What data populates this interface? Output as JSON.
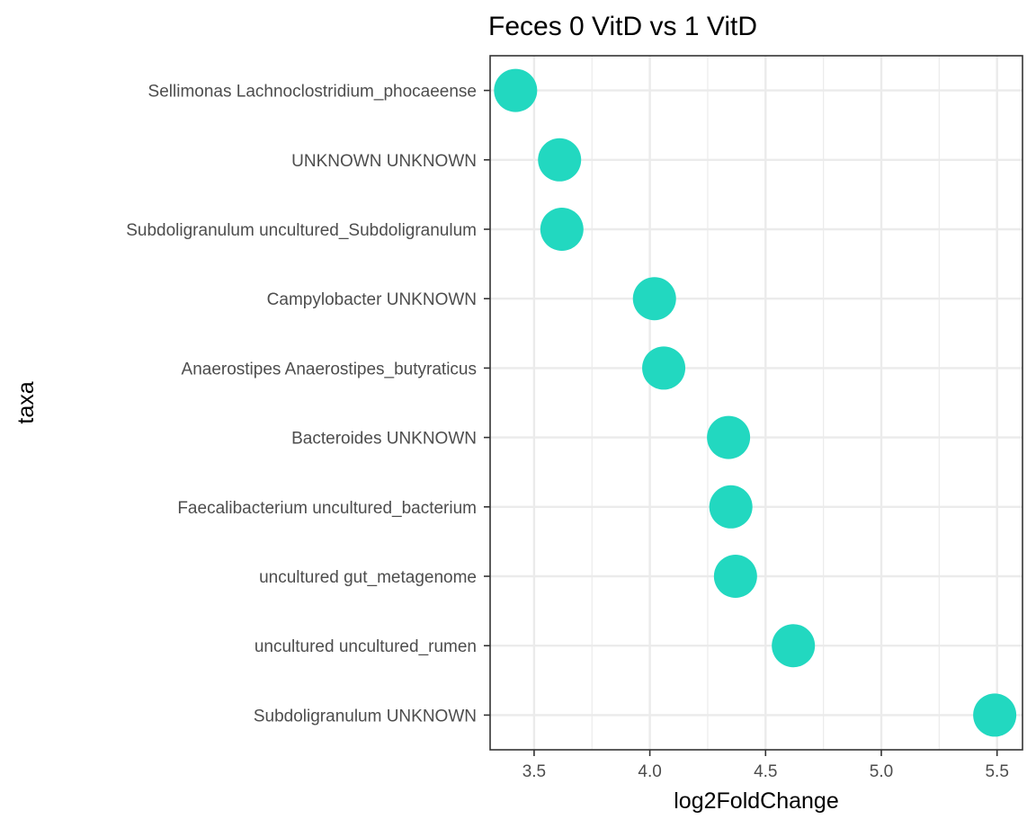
{
  "chart_data": {
    "type": "scatter",
    "title": "Feces 0 VitD vs 1 VitD",
    "xlabel": "log2FoldChange",
    "ylabel": "taxa",
    "xlim": [
      3.31,
      5.61
    ],
    "x_ticks": [
      3.5,
      4.0,
      4.5,
      5.0,
      5.5
    ],
    "x_tick_labels": [
      "3.5",
      "4.0",
      "4.5",
      "5.0",
      "5.5"
    ],
    "grid": true,
    "point_color": "#22d8c0",
    "categories": [
      "Sellimonas Lachnoclostridium_phocaeense",
      "UNKNOWN UNKNOWN",
      "Subdoligranulum uncultured_Subdoligranulum",
      "Campylobacter UNKNOWN",
      "Anaerostipes Anaerostipes_butyraticus",
      "Bacteroides UNKNOWN",
      "Faecalibacterium uncultured_bacterium",
      "uncultured gut_metagenome",
      "uncultured uncultured_rumen",
      "Subdoligranulum UNKNOWN"
    ],
    "values": [
      3.42,
      3.61,
      3.62,
      4.02,
      4.06,
      4.34,
      4.35,
      4.37,
      4.62,
      5.49
    ]
  }
}
